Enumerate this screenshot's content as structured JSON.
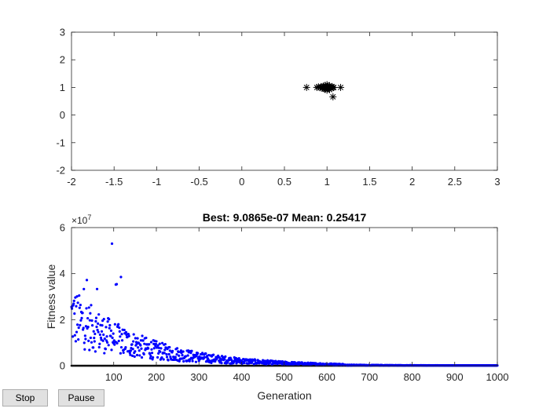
{
  "controls": {
    "stop_label": "Stop",
    "pause_label": "Pause"
  },
  "chart_data": [
    {
      "type": "scatter",
      "marker": "asterisk",
      "marker_color": "#000000",
      "xlim": [
        -2,
        3
      ],
      "ylim": [
        -2,
        3
      ],
      "xticks": [
        "-2",
        "-1.5",
        "-1",
        "-0.5",
        "0",
        "0.5",
        "1",
        "1.5",
        "2",
        "2.5",
        "3"
      ],
      "yticks": [
        "-2",
        "-1",
        "0",
        "1",
        "2",
        "3"
      ],
      "grid": false,
      "points": [
        [
          0.76,
          1.0
        ],
        [
          0.88,
          1.0
        ],
        [
          0.9,
          1.02
        ],
        [
          0.92,
          0.99
        ],
        [
          0.93,
          1.03
        ],
        [
          0.94,
          0.97
        ],
        [
          0.95,
          1.01
        ],
        [
          0.96,
          1.05
        ],
        [
          0.97,
          0.95
        ],
        [
          0.97,
          1.0
        ],
        [
          0.98,
          1.07
        ],
        [
          0.98,
          0.93
        ],
        [
          0.99,
          1.02
        ],
        [
          1.0,
          0.98
        ],
        [
          1.0,
          1.1
        ],
        [
          1.0,
          0.9
        ],
        [
          1.01,
          1.04
        ],
        [
          1.02,
          0.96
        ],
        [
          1.02,
          1.0
        ],
        [
          1.03,
          1.06
        ],
        [
          1.03,
          0.92
        ],
        [
          1.04,
          1.01
        ],
        [
          1.05,
          0.97
        ],
        [
          1.06,
          1.03
        ],
        [
          1.07,
          0.99
        ],
        [
          1.08,
          1.0
        ],
        [
          1.07,
          0.66
        ],
        [
          1.16,
          1.0
        ]
      ]
    },
    {
      "type": "scatter",
      "title": "Best: 9.0865e-07 Mean: 0.25417",
      "xlabel": "Generation",
      "ylabel": "Fitness value",
      "y_exponent": "×10",
      "y_exponent_power": "7",
      "xlim": [
        1,
        1000
      ],
      "ylim": [
        0,
        6
      ],
      "xticks": [
        "100",
        "200",
        "300",
        "400",
        "500",
        "600",
        "700",
        "800",
        "900",
        "1000"
      ],
      "yticks": [
        "0",
        "2",
        "4",
        "6"
      ],
      "grid": false,
      "series": [
        {
          "role": "mean",
          "color": "#0000ff"
        },
        {
          "role": "best",
          "color": "#000000"
        }
      ]
    }
  ]
}
